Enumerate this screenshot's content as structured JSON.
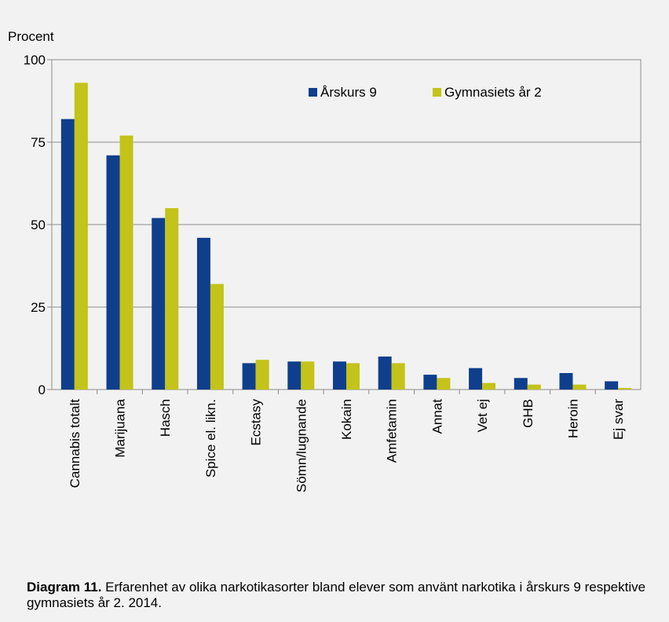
{
  "chart_data": {
    "type": "bar",
    "ylabel": "Procent",
    "ylim": [
      0,
      100
    ],
    "yticks": [
      0,
      25,
      50,
      75,
      100
    ],
    "grid": true,
    "legend_position": "top-right",
    "categories": [
      "Cannabis totalt",
      "Marijuana",
      "Hasch",
      "Spice el. likn.",
      "Ecstasy",
      "Sömn/lugnande",
      "Kokain",
      "Amfetamin",
      "Annat",
      "Vet ej",
      "GHB",
      "Heroin",
      "Ej svar"
    ],
    "series": [
      {
        "name": "Årskurs 9",
        "color": "#0f3f8c",
        "values": [
          82,
          71,
          52,
          46,
          8,
          8.5,
          8.5,
          10,
          4.5,
          6.5,
          3.5,
          5,
          2.5
        ]
      },
      {
        "name": "Gymnasiets år 2",
        "color": "#c3c31a",
        "values": [
          93,
          77,
          55,
          32,
          9,
          8.5,
          8,
          8,
          3.5,
          2,
          1.5,
          1.5,
          0.5
        ]
      }
    ]
  },
  "caption": {
    "label": "Diagram 11.",
    "text": " Erfarenhet av olika narkotikasorter bland elever som använt narkotika i årskurs 9 respektive gymnasiets år 2. 2014."
  }
}
